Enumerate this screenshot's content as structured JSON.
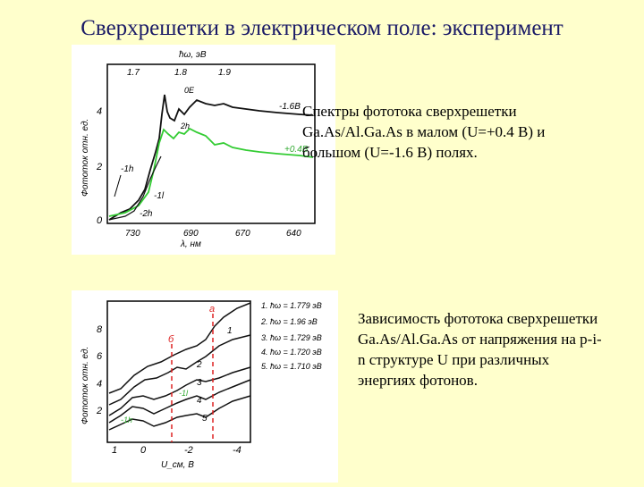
{
  "slide": {
    "title": "Сверхрешетки в электрическом поле: эксперимент",
    "caption1": "Спектры фототока сверхрешетки Ga.As/Al.Ga.As в малом (U=+0.4 В) и большом (U=-1.6 В) полях.",
    "caption2": "Зависимость фототока сверхрешетки Ga.As/Al.Ga.As от напряжения на p-i-n структуре U при различных энергиях фотонов."
  },
  "figure1": {
    "top_axis_label": "ħω, эВ",
    "top_ticks": [
      "1.7",
      "1.8",
      "1.9"
    ],
    "y_label": "Фототок отн. ед.",
    "y_ticks": [
      "4",
      "2",
      "0"
    ],
    "x_label": "λ, нм",
    "x_ticks": [
      "730",
      "690",
      "670",
      "640"
    ],
    "labels": {
      "a": "0E",
      "b": "-1.6В",
      "c": "+0.4В",
      "d": "-1h",
      "e": "-1l",
      "f": "-2h",
      "g": "2h"
    },
    "colors": {
      "black_curve": "#111111",
      "green_curve": "#33cc33"
    }
  },
  "figure2": {
    "legend": [
      "1. ħω = 1.779 эВ",
      "2. ħω = 1.96 эВ",
      "3. ħω = 1.729 эВ",
      "4. ħω = 1.720 эВ",
      "5. ħω = 1.710 эВ"
    ],
    "y_label": "Фототок отн. ед.",
    "y_ticks": [
      "8",
      "6",
      "4",
      "2"
    ],
    "x_label": "U_см, В",
    "x_ticks": [
      "1",
      "0",
      "-2",
      "-4"
    ],
    "curve_numbers": [
      "1",
      "2",
      "3",
      "4",
      "5"
    ],
    "markers": {
      "a": "a",
      "b": "б",
      "c": "-1l",
      "d": "-1h"
    },
    "colors": {
      "red_marker": "#dd2222",
      "green_label": "#33aa33"
    }
  }
}
